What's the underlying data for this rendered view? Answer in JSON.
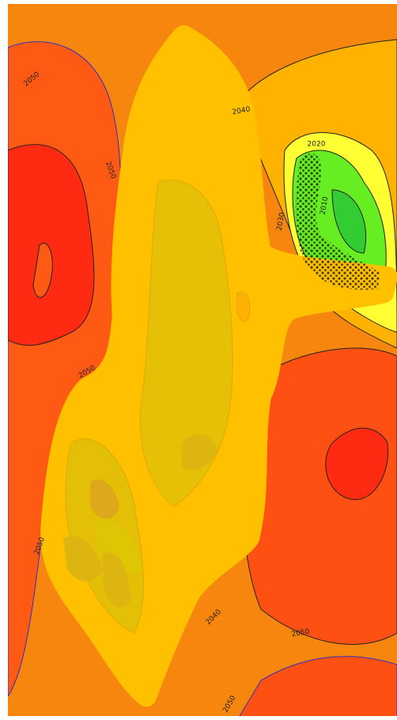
{
  "contour_labels": [
    "2050",
    "2040",
    "2020",
    "2010",
    "2030",
    "2050",
    "2050",
    "2050",
    "2040",
    "2050",
    "2050"
  ]
}
